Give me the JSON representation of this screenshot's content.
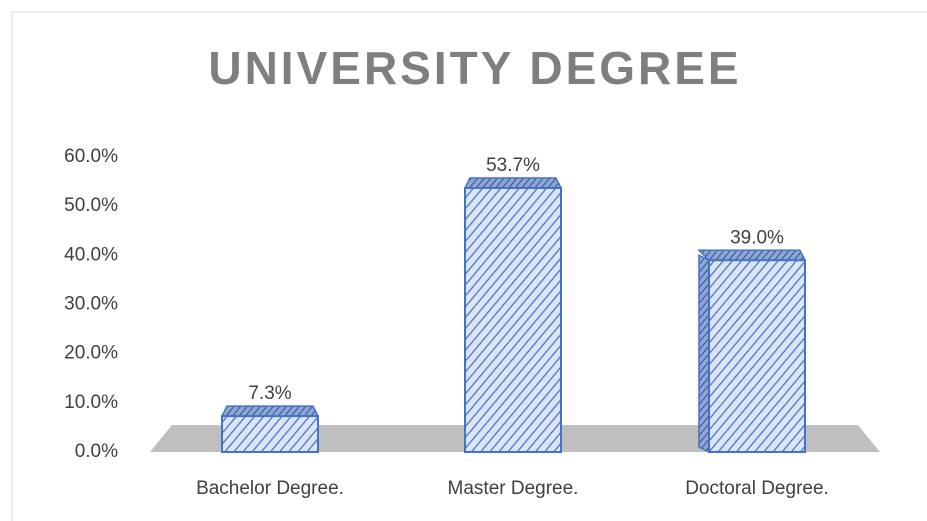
{
  "chart_data": {
    "type": "bar",
    "title": "UNIVERSITY DEGREE",
    "categories": [
      "Bachelor Degree.",
      "Master Degree.",
      "Doctoral Degree."
    ],
    "values": [
      7.3,
      53.7,
      39.0
    ],
    "value_labels": [
      "7.3%",
      "53.7%",
      "39.0%"
    ],
    "color": "#4472c4",
    "ylim": [
      0,
      60
    ],
    "yticks": [
      {
        "value": 0,
        "label": "0.0%"
      },
      {
        "value": 10,
        "label": "10.0%"
      },
      {
        "value": 20,
        "label": "20.0%"
      },
      {
        "value": 30,
        "label": "30.0%"
      },
      {
        "value": 40,
        "label": "40.0%"
      },
      {
        "value": 50,
        "label": "50.0%"
      },
      {
        "value": 60,
        "label": "60.0%"
      }
    ],
    "grid": false
  }
}
